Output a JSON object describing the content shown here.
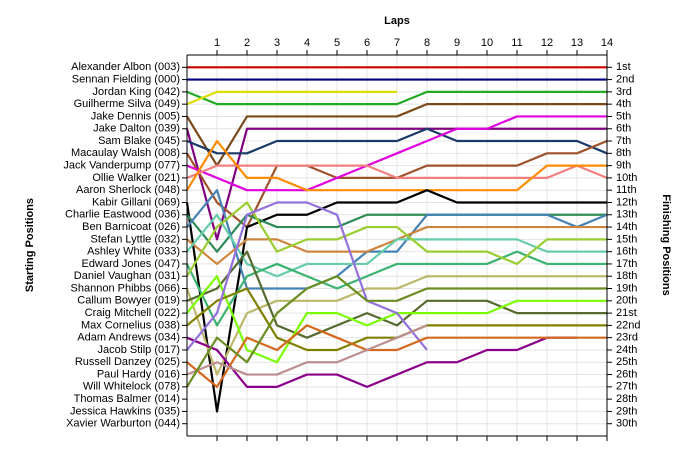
{
  "chart_data": {
    "type": "line",
    "title": "Laps",
    "y_label": "Starting Positions",
    "y2_label": "Finishing Positions",
    "x": [
      0,
      1,
      2,
      3,
      4,
      5,
      6,
      7,
      8,
      9,
      10,
      11,
      12,
      13,
      14
    ],
    "xlim": [
      0,
      14
    ],
    "xticks": [
      1,
      2,
      3,
      4,
      5,
      6,
      7,
      8,
      9,
      10,
      11,
      12,
      13,
      14
    ],
    "ylim": [
      31,
      0
    ],
    "yticks": [
      {
        "value": 1,
        "label": "1st"
      },
      {
        "value": 2,
        "label": "2nd"
      },
      {
        "value": 3,
        "label": "3rd"
      },
      {
        "value": 4,
        "label": "4th"
      },
      {
        "value": 5,
        "label": "5th"
      },
      {
        "value": 6,
        "label": "6th"
      },
      {
        "value": 7,
        "label": "7th"
      },
      {
        "value": 8,
        "label": "8th"
      },
      {
        "value": 9,
        "label": "9th"
      },
      {
        "value": 10,
        "label": "10th"
      },
      {
        "value": 11,
        "label": "11th"
      },
      {
        "value": 12,
        "label": "12th"
      },
      {
        "value": 13,
        "label": "13th"
      },
      {
        "value": 14,
        "label": "14th"
      },
      {
        "value": 15,
        "label": "15th"
      },
      {
        "value": 16,
        "label": "16th"
      },
      {
        "value": 17,
        "label": "17th"
      },
      {
        "value": 18,
        "label": "18th"
      },
      {
        "value": 19,
        "label": "19th"
      },
      {
        "value": 20,
        "label": "20th"
      },
      {
        "value": 21,
        "label": "21st"
      },
      {
        "value": 22,
        "label": "22nd"
      },
      {
        "value": 23,
        "label": "23rd"
      },
      {
        "value": 24,
        "label": "24th"
      },
      {
        "value": 25,
        "label": "25th"
      },
      {
        "value": 26,
        "label": "26th"
      },
      {
        "value": 27,
        "label": "27th"
      },
      {
        "value": 28,
        "label": "28th"
      },
      {
        "value": 29,
        "label": "29th"
      },
      {
        "value": 30,
        "label": "30th"
      }
    ],
    "grid": true,
    "series": [
      {
        "name": "Alexander Albon (003)",
        "color": "#cc0000",
        "values": [
          1,
          1,
          1,
          1,
          1,
          1,
          1,
          1,
          1,
          1,
          1,
          1,
          1,
          1,
          1
        ]
      },
      {
        "name": "Sennan Fielding (000)",
        "color": "#000080",
        "values": [
          2,
          2,
          2,
          2,
          2,
          2,
          2,
          2,
          2,
          2,
          2,
          2,
          2,
          2,
          2
        ]
      },
      {
        "name": "Jordan King (042)",
        "color": "#22aa22",
        "values": [
          3,
          4,
          4,
          4,
          4,
          4,
          4,
          4,
          3,
          3,
          3,
          3,
          3,
          3,
          3
        ]
      },
      {
        "name": "Guilherme Silva (049)",
        "color": "#dddd00",
        "values": [
          4,
          3,
          3,
          3,
          3,
          3,
          3,
          3,
          null,
          null,
          null,
          null,
          null,
          null,
          null
        ]
      },
      {
        "name": "Jake Dennis (005)",
        "color": "#7a4a1a",
        "values": [
          5,
          9,
          5,
          5,
          5,
          5,
          5,
          5,
          4,
          4,
          4,
          4,
          4,
          4,
          4
        ]
      },
      {
        "name": "Jake Dalton (039)",
        "color": "#800080",
        "values": [
          6,
          15,
          6,
          6,
          6,
          6,
          6,
          6,
          6,
          6,
          6,
          6,
          6,
          6,
          6
        ]
      },
      {
        "name": "Sam Blake (045)",
        "color": "#1a3a6a",
        "values": [
          7,
          8,
          8,
          7,
          7,
          7,
          7,
          7,
          6,
          7,
          7,
          7,
          7,
          7,
          8
        ]
      },
      {
        "name": "Macaulay Walsh (008)",
        "color": "#a0522d",
        "values": [
          8,
          12,
          14,
          9,
          9,
          10,
          10,
          10,
          9,
          9,
          9,
          9,
          8,
          8,
          7
        ]
      },
      {
        "name": "Jack Vanderpump (077)",
        "color": "#e000e0",
        "values": [
          9,
          10,
          11,
          11,
          11,
          10,
          9,
          8,
          7,
          6,
          6,
          5,
          5,
          5,
          5
        ]
      },
      {
        "name": "Ollie Walker (021)",
        "color": "#f08080",
        "values": [
          10,
          9,
          9,
          9,
          9,
          9,
          9,
          10,
          10,
          10,
          10,
          10,
          10,
          9,
          10
        ]
      },
      {
        "name": "Aaron Sherlock (048)",
        "color": "#ff8c00",
        "values": [
          11,
          7,
          10,
          10,
          11,
          11,
          11,
          11,
          11,
          11,
          11,
          11,
          9,
          9,
          9
        ]
      },
      {
        "name": "Kabir Gillani (069)",
        "color": "#000000",
        "values": [
          12,
          29,
          14,
          13,
          13,
          12,
          12,
          12,
          11,
          12,
          12,
          12,
          12,
          12,
          12
        ]
      },
      {
        "name": "Charlie Eastwood (036)",
        "color": "#2e8b57",
        "values": [
          13,
          16,
          13,
          14,
          14,
          14,
          13,
          13,
          13,
          13,
          13,
          13,
          13,
          13,
          13
        ]
      },
      {
        "name": "Ben Barnicoat (026)",
        "color": "#4682b4",
        "values": [
          14,
          11,
          19,
          19,
          19,
          18,
          16,
          16,
          13,
          13,
          13,
          13,
          13,
          14,
          13
        ]
      },
      {
        "name": "Stefan Lyttle (032)",
        "color": "#cd853f",
        "values": [
          15,
          17,
          15,
          15,
          16,
          16,
          16,
          15,
          14,
          14,
          14,
          14,
          14,
          14,
          14
        ]
      },
      {
        "name": "Ashley White (033)",
        "color": "#66cdaa",
        "values": [
          16,
          13,
          17,
          18,
          17,
          17,
          17,
          15,
          15,
          15,
          15,
          15,
          16,
          16,
          16
        ]
      },
      {
        "name": "Edward Jones (047)",
        "color": "#3cb371",
        "values": [
          17,
          22,
          18,
          17,
          18,
          19,
          18,
          17,
          17,
          17,
          17,
          16,
          17,
          17,
          17
        ]
      },
      {
        "name": "Daniel Vaughan (031)",
        "color": "#9acd32",
        "values": [
          18,
          14,
          12,
          16,
          15,
          15,
          14,
          14,
          16,
          16,
          16,
          17,
          15,
          15,
          15
        ]
      },
      {
        "name": "Shannon Phibbs (066)",
        "color": "#bdb76b",
        "values": [
          19,
          26,
          21,
          20,
          20,
          20,
          19,
          19,
          18,
          18,
          18,
          18,
          18,
          18,
          18
        ]
      },
      {
        "name": "Callum Bowyer (019)",
        "color": "#556b2f",
        "values": [
          20,
          19,
          16,
          22,
          23,
          22,
          21,
          22,
          20,
          20,
          20,
          21,
          21,
          21,
          21
        ]
      },
      {
        "name": "Craig Mitchell (022)",
        "color": "#7cfc00",
        "values": [
          21,
          18,
          24,
          25,
          21,
          21,
          22,
          21,
          21,
          21,
          21,
          20,
          20,
          20,
          20
        ]
      },
      {
        "name": "Max Cornelius (038)",
        "color": "#808000",
        "values": [
          22,
          20,
          19,
          23,
          24,
          24,
          23,
          23,
          22,
          22,
          22,
          22,
          22,
          22,
          22
        ]
      },
      {
        "name": "Adam Andrews (034)",
        "color": "#8b008b",
        "values": [
          23,
          24,
          27,
          27,
          26,
          26,
          27,
          26,
          25,
          25,
          24,
          24,
          23,
          23,
          null
        ]
      },
      {
        "name": "Jacob Stilp (017)",
        "color": "#9370db",
        "values": [
          24,
          21,
          13,
          12,
          12,
          13,
          20,
          21,
          24,
          null,
          null,
          null,
          null,
          null,
          null
        ]
      },
      {
        "name": "Russell Danzey (025)",
        "color": "#d2691e",
        "values": [
          25,
          27,
          23,
          24,
          22,
          23,
          24,
          24,
          23,
          23,
          23,
          23,
          23,
          23,
          23
        ]
      },
      {
        "name": "Paul Hardy (016)",
        "color": "#bc8f8f",
        "values": [
          26,
          25,
          26,
          26,
          25,
          25,
          24,
          23,
          22,
          null,
          null,
          null,
          null,
          null,
          null
        ]
      },
      {
        "name": "Will Whitelock (078)",
        "color": "#6b8e23",
        "values": [
          27,
          23,
          25,
          21,
          19,
          18,
          20,
          20,
          19,
          19,
          19,
          19,
          19,
          19,
          19
        ]
      },
      {
        "name": "Thomas Balmer (014)",
        "color": "#999999",
        "values": [
          28,
          null,
          null,
          null,
          null,
          null,
          null,
          null,
          null,
          null,
          null,
          null,
          null,
          null,
          null
        ]
      },
      {
        "name": "Jessica Hawkins (035)",
        "color": "#999999",
        "values": [
          29,
          null,
          null,
          null,
          null,
          null,
          null,
          null,
          null,
          null,
          null,
          null,
          null,
          null,
          null
        ]
      },
      {
        "name": "Xavier Warburton (044)",
        "color": "#999999",
        "values": [
          30,
          null,
          null,
          null,
          null,
          null,
          null,
          null,
          null,
          null,
          null,
          null,
          null,
          null,
          null
        ]
      }
    ]
  }
}
